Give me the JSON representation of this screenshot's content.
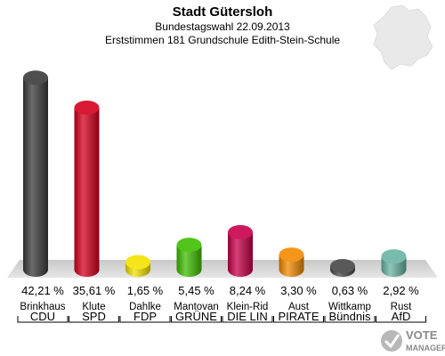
{
  "chart_data": {
    "type": "bar",
    "title": "Stadt Gütersloh",
    "subtitle_lines": [
      "Bundestagswahl 22.09.2013",
      "Erststimmen 181 Grundschule Edith-Stein-Schule"
    ],
    "ylim": [
      0,
      45
    ],
    "value_suffix": " %",
    "categories": [
      {
        "candidate": "Brinkhaus",
        "party": "CDU",
        "value": 42.21,
        "value_label": "42,21 %",
        "color": "#3a3a3a"
      },
      {
        "candidate": "Klute",
        "party": "SPD",
        "value": 35.61,
        "value_label": "35,61 %",
        "color": "#d4001f"
      },
      {
        "candidate": "Dahlke",
        "party": "FDP",
        "value": 1.65,
        "value_label": "1,65 %",
        "color": "#f4e200"
      },
      {
        "candidate": "Mantovan",
        "party": "GRÜNE",
        "value": 5.45,
        "value_label": "5,45 %",
        "color": "#3fbf00"
      },
      {
        "candidate": "Klein-Rid",
        "party": "DIE LIN",
        "value": 8.24,
        "value_label": "8,24 %",
        "color": "#c8004a"
      },
      {
        "candidate": "Aust",
        "party": "PIRATE",
        "value": 3.3,
        "value_label": "3,30 %",
        "color": "#f28a00"
      },
      {
        "candidate": "Wittkamp",
        "party": "Bündnis",
        "value": 0.63,
        "value_label": "0,63 %",
        "color": "#474747"
      },
      {
        "candidate": "Rust",
        "party": "AfD",
        "value": 2.92,
        "value_label": "2,92 %",
        "color": "#6ab4a4"
      }
    ]
  },
  "logo": {
    "line1": "VOTE",
    "line2": "MANAGER"
  }
}
